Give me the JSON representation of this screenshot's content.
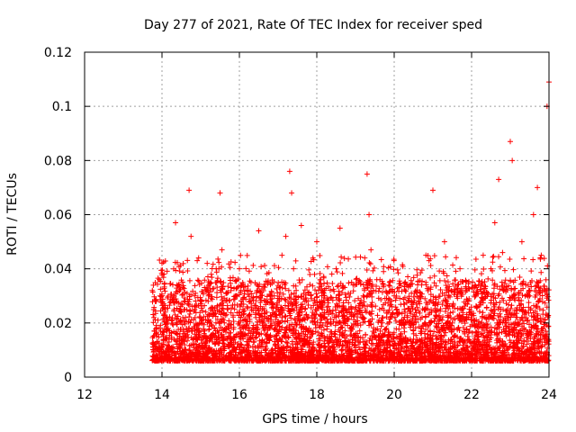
{
  "chart_data": {
    "type": "scatter",
    "title": "Day 277 of 2021, Rate Of TEC Index for receiver sped",
    "xlabel": "GPS time / hours",
    "ylabel": "ROTI / TECUs",
    "xlim": [
      12,
      24
    ],
    "ylim": [
      0,
      0.12
    ],
    "xticks": [
      "12",
      "14",
      "16",
      "18",
      "20",
      "22",
      "24"
    ],
    "yticks": [
      "0",
      "0.02",
      "0.04",
      "0.06",
      "0.08",
      "0.1",
      "0.12"
    ],
    "grid": true,
    "marker": "+",
    "color": "#ff0000",
    "points_description": "dense cluster of points, mostly 0.005-0.03, covering 13.75-24 h",
    "series": [
      {
        "name": "ROTI",
        "x": [
          13.75,
          13.8,
          13.85,
          13.9,
          13.95,
          14.0,
          14.05,
          14.1,
          14.15,
          14.2,
          14.35,
          14.4,
          14.45,
          14.7,
          14.75,
          14.8,
          15.0,
          15.1,
          15.2,
          15.3,
          15.4,
          15.5,
          15.55,
          15.6,
          15.7,
          15.8,
          15.9,
          16.0,
          16.1,
          16.2,
          16.3,
          16.5,
          16.6,
          16.8,
          16.9,
          17.0,
          17.1,
          17.2,
          17.3,
          17.35,
          17.4,
          17.5,
          17.6,
          17.8,
          17.9,
          18.0,
          18.2,
          18.3,
          18.5,
          18.6,
          18.7,
          18.8,
          18.9,
          19.0,
          19.2,
          19.3,
          19.35,
          19.4,
          19.6,
          19.8,
          20.0,
          20.1,
          20.3,
          20.5,
          20.7,
          20.9,
          21.0,
          21.1,
          21.3,
          21.5,
          21.7,
          21.9,
          22.1,
          22.3,
          22.5,
          22.6,
          22.7,
          22.8,
          22.9,
          23.0,
          23.05,
          23.1,
          23.3,
          23.5,
          23.6,
          23.7,
          23.8,
          23.9,
          23.95,
          24.0
        ],
        "y": [
          0.032,
          0.012,
          0.028,
          0.01,
          0.03,
          0.042,
          0.038,
          0.02,
          0.01,
          0.006,
          0.057,
          0.014,
          0.012,
          0.069,
          0.052,
          0.012,
          0.02,
          0.015,
          0.03,
          0.01,
          0.04,
          0.068,
          0.047,
          0.015,
          0.025,
          0.012,
          0.03,
          0.04,
          0.018,
          0.01,
          0.035,
          0.054,
          0.02,
          0.015,
          0.03,
          0.02,
          0.045,
          0.052,
          0.076,
          0.068,
          0.04,
          0.012,
          0.056,
          0.018,
          0.044,
          0.05,
          0.03,
          0.01,
          0.04,
          0.055,
          0.02,
          0.012,
          0.035,
          0.01,
          0.03,
          0.075,
          0.06,
          0.047,
          0.012,
          0.018,
          0.03,
          0.01,
          0.02,
          0.014,
          0.018,
          0.043,
          0.069,
          0.012,
          0.05,
          0.02,
          0.04,
          0.015,
          0.03,
          0.045,
          0.04,
          0.057,
          0.073,
          0.046,
          0.02,
          0.087,
          0.08,
          0.03,
          0.05,
          0.03,
          0.06,
          0.07,
          0.045,
          0.02,
          0.1,
          0.109
        ]
      }
    ]
  }
}
